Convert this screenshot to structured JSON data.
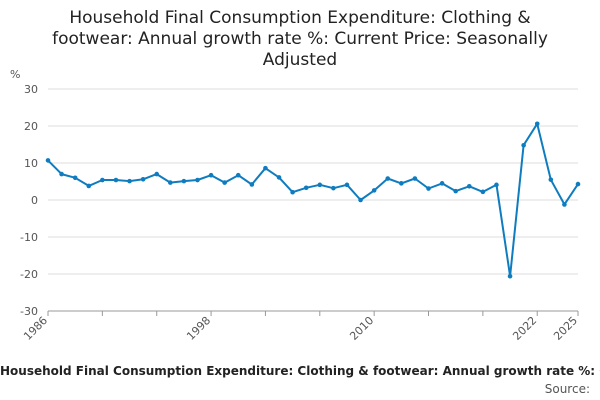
{
  "title_lines": [
    "Household Final Consumption Expenditure: Clothing &",
    "footwear: Annual growth rate %: Current Price: Seasonally",
    "Adjusted"
  ],
  "legend_text": "Household Final Consumption Expenditure: Clothing & footwear: Annual growth rate %: Current Price: Seasonally Adjusted",
  "source_label": "Source:",
  "colors": {
    "series": "#0f7cbf",
    "grid": "#dddddd",
    "axis": "#999999",
    "tick_text": "#555555"
  },
  "chart_data": {
    "type": "line",
    "title": "Household Final Consumption Expenditure: Clothing & footwear: Annual growth rate %: Current Price: Seasonally Adjusted",
    "ylabel": "%",
    "xlabel": "",
    "ylim": [
      -30,
      30
    ],
    "xlim": [
      1986,
      2025
    ],
    "y_ticks": [
      30,
      20,
      10,
      0,
      -10,
      -20,
      -30
    ],
    "x_ticks": [
      "1986",
      "1998",
      "2010",
      "2022",
      "2025"
    ],
    "grid": true,
    "legend_position": "bottom",
    "series": [
      {
        "name": "Household Final Consumption Expenditure: Clothing & footwear: Annual growth rate %: Current Price: Seasonally Adjusted",
        "x": [
          1986,
          1987,
          1988,
          1989,
          1990,
          1991,
          1992,
          1993,
          1994,
          1995,
          1996,
          1997,
          1998,
          1999,
          2000,
          2001,
          2002,
          2003,
          2004,
          2005,
          2006,
          2007,
          2008,
          2009,
          2010,
          2011,
          2012,
          2013,
          2014,
          2015,
          2016,
          2017,
          2018,
          2019,
          2020,
          2021,
          2022,
          2023,
          2024,
          2025
        ],
        "values": [
          10.7,
          7.0,
          6.0,
          3.8,
          5.4,
          5.4,
          5.1,
          5.6,
          7.0,
          4.7,
          5.1,
          5.4,
          6.7,
          4.7,
          6.7,
          4.2,
          8.6,
          6.1,
          2.1,
          3.3,
          4.1,
          3.2,
          4.1,
          0.0,
          2.6,
          5.8,
          4.5,
          5.8,
          3.1,
          4.5,
          2.4,
          3.7,
          2.2,
          4.1,
          -20.6,
          14.8,
          20.6,
          5.5,
          -1.2,
          4.3
        ]
      }
    ]
  }
}
